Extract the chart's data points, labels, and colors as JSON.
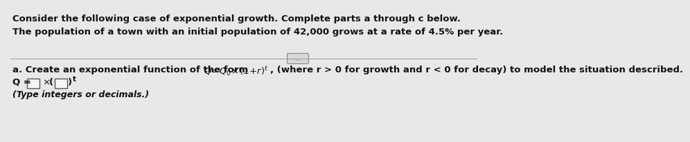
{
  "bg_color": "#e8e8e8",
  "line1": "Consider the following case of exponential growth. Complete parts a through c below.",
  "line2": "The population of a town with an initial population of 42,000 grows at a rate of 4.5% per year.",
  "part_a_text": "a. Create an exponential function of the form ",
  "part_a_formula": "Q = Q_0 \\times (1+r)^t",
  "part_a_suffix": ", (where r > 0 for growth and r < 0 for decay) to model the situation described.",
  "answer_prefix": "Q = ",
  "times_sym": "×",
  "hint": "(Type integers or decimals.)",
  "dots_label": "...",
  "font_size": 9.5,
  "font_size_small": 9.0,
  "text_color": "#111111",
  "sep_color": "#999999",
  "box_facecolor": "#f5f5f5",
  "box_edgecolor": "#555555",
  "dots_facecolor": "#d8d8d8",
  "dots_edgecolor": "#888888"
}
